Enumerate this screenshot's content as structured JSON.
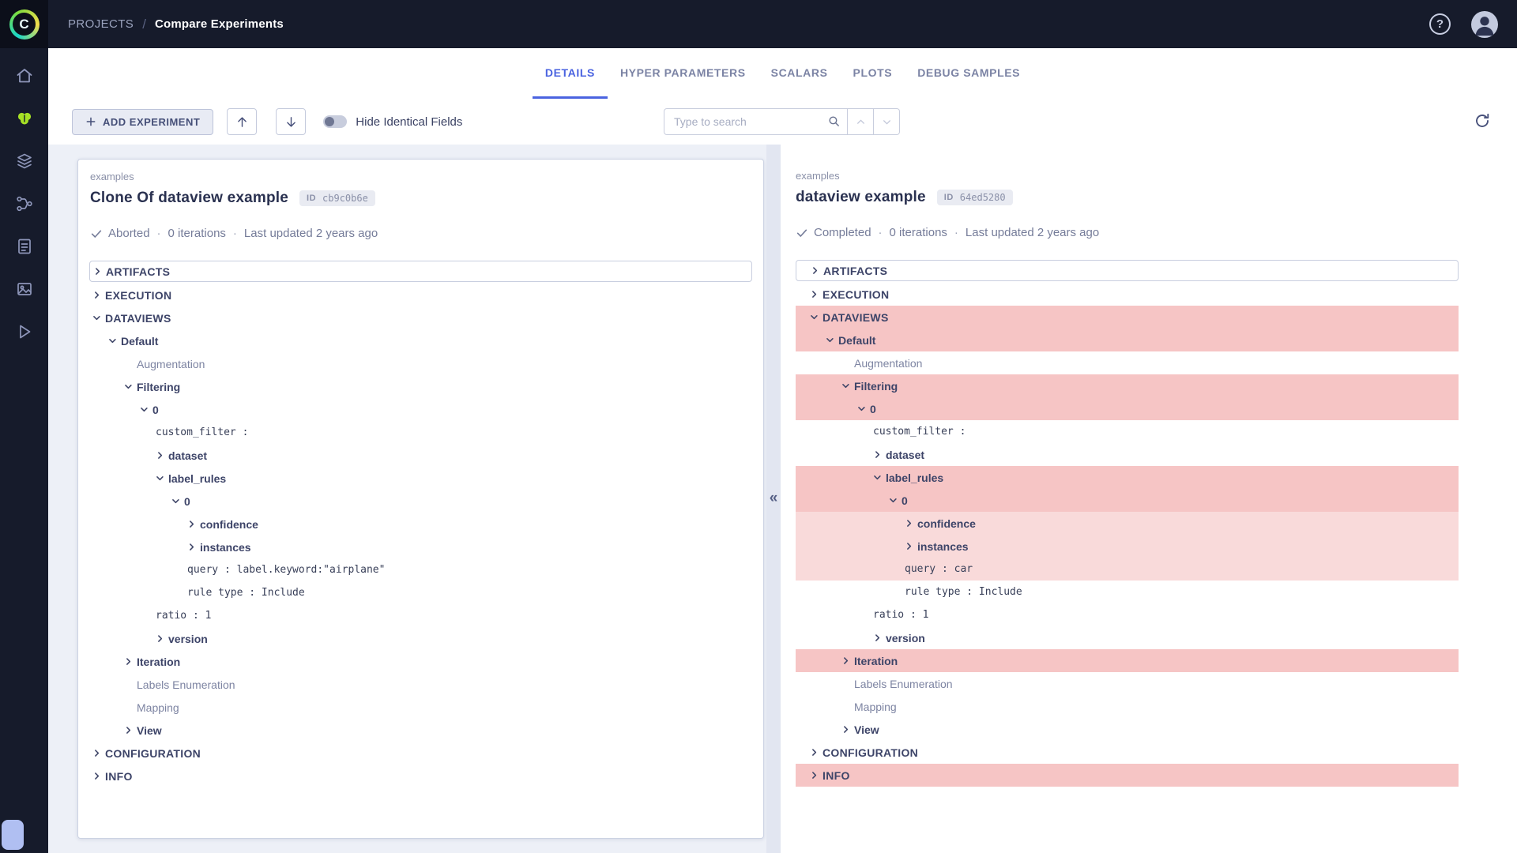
{
  "topbar": {
    "breadcrumb": {
      "parent": "PROJECTS",
      "separator": "/",
      "current": "Compare Experiments"
    }
  },
  "logo_letter": "C",
  "help_glyph": "?",
  "sidebar": {
    "icons": [
      "home-icon",
      "projects-icon",
      "datasets-icon",
      "pipelines-icon",
      "reports-icon",
      "hyper-datasets-icon",
      "applications-icon"
    ]
  },
  "tabs": [
    {
      "label": "DETAILS",
      "active": true
    },
    {
      "label": "HYPER PARAMETERS",
      "active": false
    },
    {
      "label": "SCALARS",
      "active": false
    },
    {
      "label": "PLOTS",
      "active": false
    },
    {
      "label": "DEBUG SAMPLES",
      "active": false
    }
  ],
  "toolbar": {
    "add_experiment": "ADD EXPERIMENT",
    "hide_identical": "Hide Identical Fields",
    "search_placeholder": "Type to search"
  },
  "divider": {
    "collapse_glyph": "«"
  },
  "colors": {
    "accent_blue": "#4a63e0",
    "brand_green": "#a6e125",
    "topbar_bg": "#161b2b",
    "diff_strong": "#f6c5c5",
    "diff_light": "#f9dada"
  },
  "experiments": [
    {
      "project": "examples",
      "title": "Clone Of dataview example",
      "id_label": "ID",
      "id_value": "cb9c0b6e",
      "status": "Aborted",
      "iterations": "0 iterations",
      "updated": "Last updated 2 years ago",
      "tree": [
        {
          "label": "ARTIFACTS",
          "level": 0,
          "type": "section",
          "state": "collapsed",
          "boxed": true
        },
        {
          "label": "EXECUTION",
          "level": 0,
          "type": "section",
          "state": "collapsed"
        },
        {
          "label": "DATAVIEWS",
          "level": 0,
          "type": "section",
          "state": "expanded"
        },
        {
          "label": "Default",
          "level": 1,
          "type": "branch",
          "state": "expanded"
        },
        {
          "label": "Augmentation",
          "level": 2,
          "type": "leaf",
          "state": "none"
        },
        {
          "label": "Filtering",
          "level": 2,
          "type": "branch",
          "state": "expanded"
        },
        {
          "label": "0",
          "level": 3,
          "type": "branch",
          "state": "expanded"
        },
        {
          "label": "custom_filter :",
          "level": 4,
          "type": "value",
          "state": "none"
        },
        {
          "label": "dataset",
          "level": 4,
          "type": "branch",
          "state": "collapsed"
        },
        {
          "label": "label_rules",
          "level": 4,
          "type": "branch",
          "state": "expanded"
        },
        {
          "label": "0",
          "level": 5,
          "type": "branch",
          "state": "expanded"
        },
        {
          "label": "confidence",
          "level": 6,
          "type": "branch",
          "state": "collapsed"
        },
        {
          "label": "instances",
          "level": 6,
          "type": "branch",
          "state": "collapsed"
        },
        {
          "label": "query : label.keyword:\"airplane\"",
          "level": 6,
          "type": "value",
          "state": "none"
        },
        {
          "label": "rule type : Include",
          "level": 6,
          "type": "value",
          "state": "none"
        },
        {
          "label": "ratio : 1",
          "level": 4,
          "type": "value",
          "state": "none"
        },
        {
          "label": "version",
          "level": 4,
          "type": "branch",
          "state": "collapsed"
        },
        {
          "label": "Iteration",
          "level": 2,
          "type": "branch",
          "state": "collapsed"
        },
        {
          "label": "Labels Enumeration",
          "level": 2,
          "type": "leaf",
          "state": "none"
        },
        {
          "label": "Mapping",
          "level": 2,
          "type": "leaf",
          "state": "none"
        },
        {
          "label": "View",
          "level": 2,
          "type": "branch",
          "state": "collapsed"
        },
        {
          "label": "CONFIGURATION",
          "level": 0,
          "type": "section",
          "state": "collapsed"
        },
        {
          "label": "INFO",
          "level": 0,
          "type": "section",
          "state": "collapsed"
        }
      ]
    },
    {
      "project": "examples",
      "title": "dataview example",
      "id_label": "ID",
      "id_value": "64ed5280",
      "status": "Completed",
      "iterations": "0 iterations",
      "updated": "Last updated 2 years ago",
      "tree": [
        {
          "label": "ARTIFACTS",
          "level": 0,
          "type": "section",
          "state": "collapsed",
          "boxed": true
        },
        {
          "label": "EXECUTION",
          "level": 0,
          "type": "section",
          "state": "collapsed"
        },
        {
          "label": "DATAVIEWS",
          "level": 0,
          "type": "section",
          "state": "expanded",
          "hl": "strong"
        },
        {
          "label": "Default",
          "level": 1,
          "type": "branch",
          "state": "expanded",
          "hl": "strong"
        },
        {
          "label": "Augmentation",
          "level": 2,
          "type": "leaf",
          "state": "none"
        },
        {
          "label": "Filtering",
          "level": 2,
          "type": "branch",
          "state": "expanded",
          "hl": "strong"
        },
        {
          "label": "0",
          "level": 3,
          "type": "branch",
          "state": "expanded",
          "hl": "strong"
        },
        {
          "label": "custom_filter :",
          "level": 4,
          "type": "value",
          "state": "none"
        },
        {
          "label": "dataset",
          "level": 4,
          "type": "branch",
          "state": "collapsed"
        },
        {
          "label": "label_rules",
          "level": 4,
          "type": "branch",
          "state": "expanded",
          "hl": "strong"
        },
        {
          "label": "0",
          "level": 5,
          "type": "branch",
          "state": "expanded",
          "hl": "strong"
        },
        {
          "label": "confidence",
          "level": 6,
          "type": "branch",
          "state": "collapsed",
          "hl": "light"
        },
        {
          "label": "instances",
          "level": 6,
          "type": "branch",
          "state": "collapsed",
          "hl": "light"
        },
        {
          "label": "query : car",
          "level": 6,
          "type": "value",
          "state": "none",
          "hl": "light"
        },
        {
          "label": "rule type : Include",
          "level": 6,
          "type": "value",
          "state": "none"
        },
        {
          "label": "ratio : 1",
          "level": 4,
          "type": "value",
          "state": "none"
        },
        {
          "label": "version",
          "level": 4,
          "type": "branch",
          "state": "collapsed"
        },
        {
          "label": "Iteration",
          "level": 2,
          "type": "branch",
          "state": "collapsed",
          "hl": "strong"
        },
        {
          "label": "Labels Enumeration",
          "level": 2,
          "type": "leaf",
          "state": "none"
        },
        {
          "label": "Mapping",
          "level": 2,
          "type": "leaf",
          "state": "none"
        },
        {
          "label": "View",
          "level": 2,
          "type": "branch",
          "state": "collapsed"
        },
        {
          "label": "CONFIGURATION",
          "level": 0,
          "type": "section",
          "state": "collapsed"
        },
        {
          "label": "INFO",
          "level": 0,
          "type": "section",
          "state": "collapsed",
          "hl": "strong"
        }
      ]
    }
  ]
}
